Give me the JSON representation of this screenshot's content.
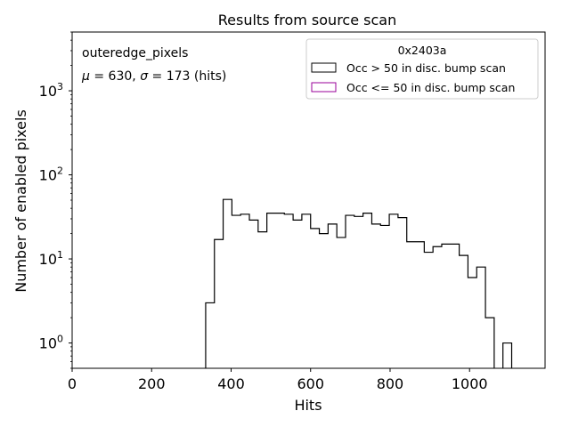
{
  "chart_data": {
    "type": "histogram-step",
    "title": "Results from source scan",
    "xlabel": "Hits",
    "ylabel": "Number of enabled pixels",
    "xlim": [
      0,
      1190
    ],
    "ylim": [
      0.5,
      5000
    ],
    "yscale": "log",
    "grid": false,
    "x_ticks": [
      0,
      200,
      400,
      600,
      800,
      1000
    ],
    "x_tick_labels": [
      "0",
      "200",
      "400",
      "600",
      "800",
      "1000"
    ],
    "y_ticks": [
      {
        "value": 1,
        "base": "10",
        "exp": "0"
      },
      {
        "value": 10,
        "base": "10",
        "exp": "1"
      },
      {
        "value": 100,
        "base": "10",
        "exp": "2"
      },
      {
        "value": 1000,
        "base": "10",
        "exp": "3"
      }
    ],
    "annotations": {
      "line1": "outeredge_pixels",
      "line2_mu_sym": "μ",
      "line2_mu_val": " = 630, ",
      "line2_sigma_sym": "σ",
      "line2_sigma_val": " = 173 (hits)"
    },
    "legend": {
      "placement": "upper right",
      "title": "0x2403a",
      "entries": [
        {
          "label": "Occ > 50 in disc. bump scan",
          "color": "#000000"
        },
        {
          "label": "Occ <= 50 in disc. bump scan",
          "color": "#990099"
        }
      ]
    },
    "bin_width": 22,
    "series": [
      {
        "name": "Occ > 50 in disc. bump scan",
        "color": "#000000",
        "bins": [
          {
            "x0": 336,
            "y": 3
          },
          {
            "x0": 358,
            "y": 17
          },
          {
            "x0": 380,
            "y": 51
          },
          {
            "x0": 402,
            "y": 33
          },
          {
            "x0": 424,
            "y": 34
          },
          {
            "x0": 446,
            "y": 29
          },
          {
            "x0": 468,
            "y": 21
          },
          {
            "x0": 490,
            "y": 35
          },
          {
            "x0": 512,
            "y": 35
          },
          {
            "x0": 534,
            "y": 34
          },
          {
            "x0": 556,
            "y": 29
          },
          {
            "x0": 578,
            "y": 34
          },
          {
            "x0": 600,
            "y": 23
          },
          {
            "x0": 622,
            "y": 20
          },
          {
            "x0": 644,
            "y": 26
          },
          {
            "x0": 666,
            "y": 18
          },
          {
            "x0": 688,
            "y": 33
          },
          {
            "x0": 710,
            "y": 32
          },
          {
            "x0": 732,
            "y": 35
          },
          {
            "x0": 754,
            "y": 26
          },
          {
            "x0": 776,
            "y": 25
          },
          {
            "x0": 798,
            "y": 34
          },
          {
            "x0": 820,
            "y": 31
          },
          {
            "x0": 842,
            "y": 16
          },
          {
            "x0": 864,
            "y": 16
          },
          {
            "x0": 886,
            "y": 12
          },
          {
            "x0": 908,
            "y": 14
          },
          {
            "x0": 930,
            "y": 15
          },
          {
            "x0": 952,
            "y": 15
          },
          {
            "x0": 974,
            "y": 11
          },
          {
            "x0": 996,
            "y": 6
          },
          {
            "x0": 1018,
            "y": 8
          },
          {
            "x0": 1040,
            "y": 2
          },
          {
            "x0": 1062,
            "y": 0
          },
          {
            "x0": 1084,
            "y": 1
          }
        ]
      }
    ]
  }
}
